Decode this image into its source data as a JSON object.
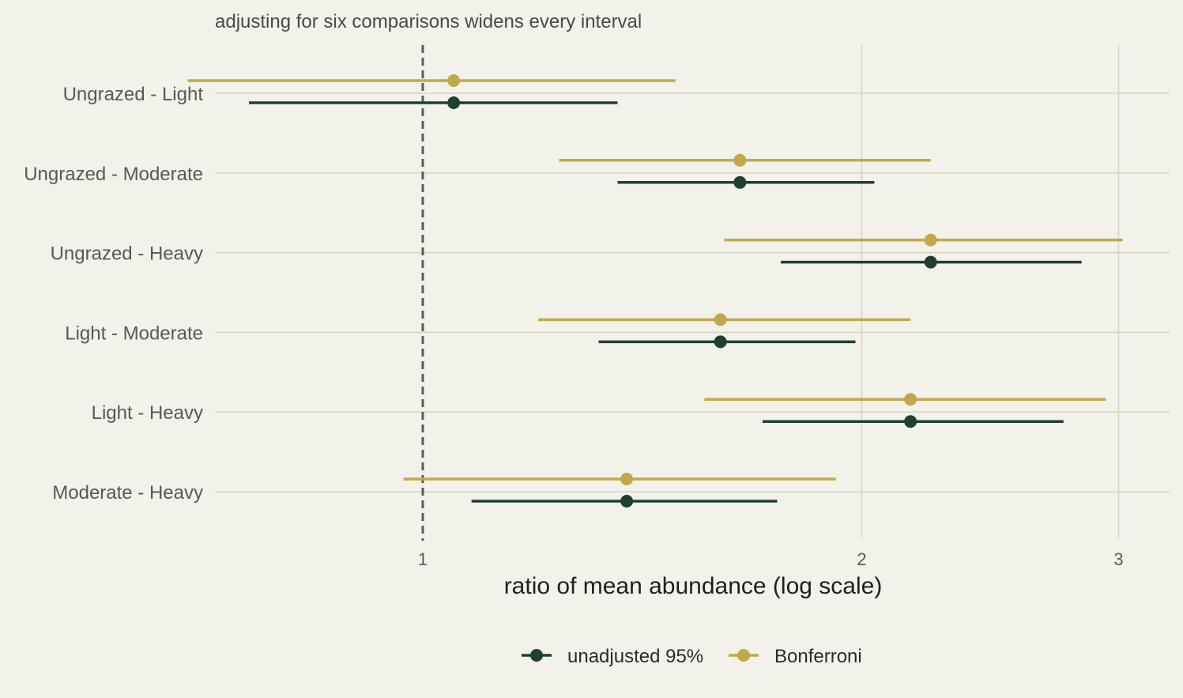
{
  "chart_data": {
    "type": "scatter",
    "subtitle": "adjusting for six comparisons widens every interval",
    "xlabel": "ratio of mean abundance (log scale)",
    "ylabel": "",
    "x_scale": "log",
    "xlim": [
      0.62,
      3.2
    ],
    "x_ticks": [
      1,
      2,
      3
    ],
    "x_tick_labels": [
      "1",
      "2",
      "3"
    ],
    "reference_line": 1,
    "grid": true,
    "legend_position": "bottom",
    "categories": [
      "Ungrazed - Light",
      "Ungrazed - Moderate",
      "Ungrazed - Heavy",
      "Light - Moderate",
      "Light - Heavy",
      "Moderate - Heavy"
    ],
    "series": [
      {
        "name": "unadjusted 95%",
        "color": "#1f4030",
        "estimate": [
          1.05,
          1.65,
          2.23,
          1.6,
          2.16,
          1.38
        ],
        "lower": [
          0.76,
          1.36,
          1.76,
          1.32,
          1.71,
          1.08
        ],
        "upper": [
          1.36,
          2.04,
          2.83,
          1.98,
          2.75,
          1.75
        ]
      },
      {
        "name": "Bonferroni",
        "color": "#c2a84a",
        "estimate": [
          1.05,
          1.65,
          2.23,
          1.6,
          2.16,
          1.38
        ],
        "lower": [
          0.69,
          1.24,
          1.61,
          1.2,
          1.56,
          0.97
        ],
        "upper": [
          1.49,
          2.23,
          3.02,
          2.16,
          2.94,
          1.92
        ]
      }
    ]
  }
}
